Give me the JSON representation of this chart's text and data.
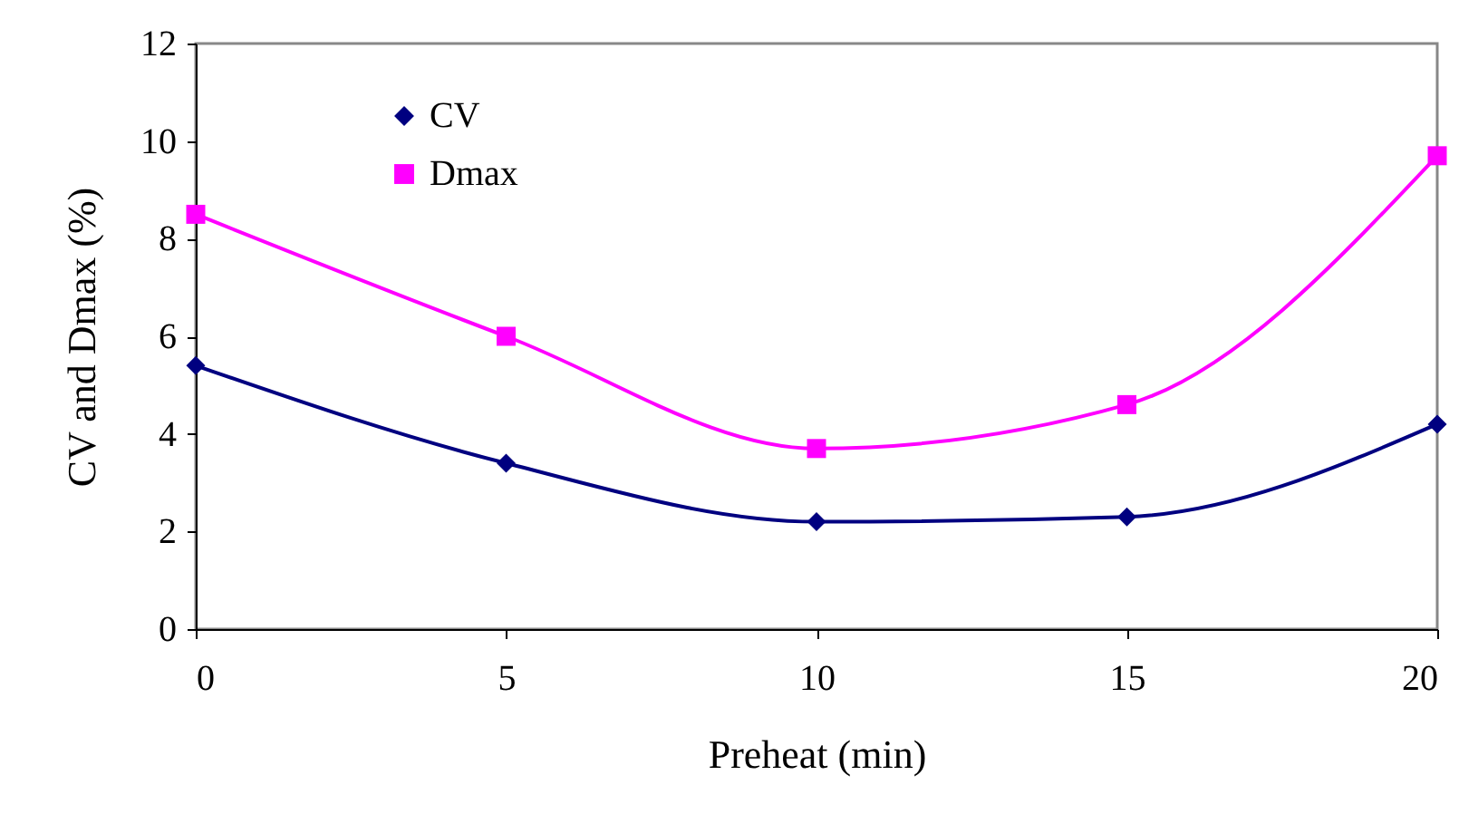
{
  "chart_data": {
    "type": "line",
    "xlabel": "Preheat (min)",
    "ylabel": "CV and Dmax (%)",
    "x": [
      0,
      5,
      10,
      15,
      20
    ],
    "series": [
      {
        "name": "CV",
        "color": "#000080",
        "marker": "diamond",
        "values": [
          5.4,
          3.4,
          2.2,
          2.3,
          4.2
        ]
      },
      {
        "name": "Dmax",
        "color": "#ff00ff",
        "marker": "square",
        "values": [
          8.5,
          6.0,
          3.7,
          4.6,
          9.7
        ]
      }
    ],
    "xlim": [
      0,
      20
    ],
    "xticks": [
      0,
      5,
      10,
      15,
      20
    ],
    "ylim": [
      0,
      12
    ],
    "yticks": [
      0,
      2,
      4,
      6,
      8,
      10,
      12
    ],
    "grid": false,
    "legend": "top left",
    "line_style": "solid"
  }
}
